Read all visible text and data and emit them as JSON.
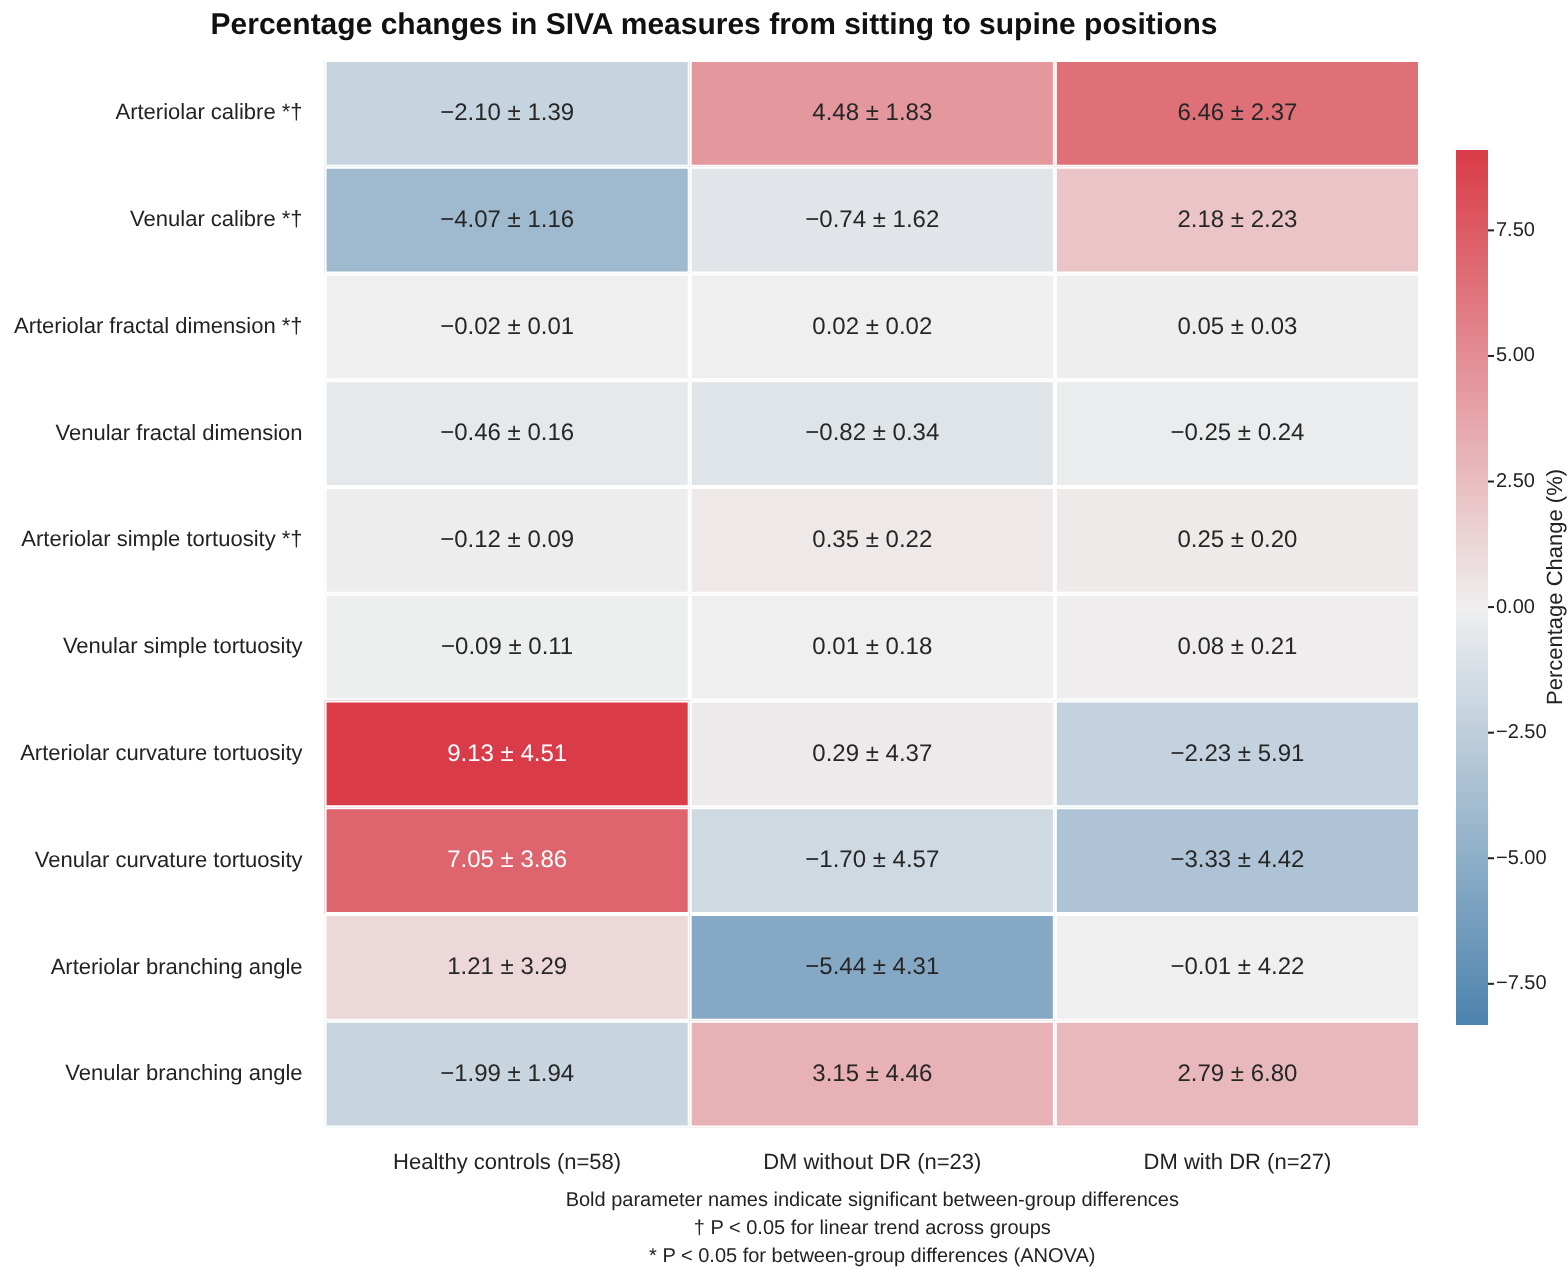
{
  "chart_data": {
    "type": "heatmap",
    "title": "Percentage changes in SIVA measures from sitting to supine positions",
    "categories": [
      "Healthy controls (n=58)",
      "DM without DR (n=23)",
      "DM with DR (n=27)"
    ],
    "y_categories": [
      "Arteriolar calibre *†",
      "Venular calibre *†",
      "Arteriolar fractal dimension *†",
      "Venular fractal dimension",
      "Arteriolar simple tortuosity *†",
      "Venular simple tortuosity",
      "Arteriolar curvature tortuosity",
      "Venular curvature tortuosity",
      "Arteriolar branching angle",
      "Venular branching angle"
    ],
    "cells": [
      [
        -2.1,
        4.48,
        6.46
      ],
      [
        -4.07,
        -0.74,
        2.18
      ],
      [
        -0.02,
        0.02,
        0.05
      ],
      [
        -0.46,
        -0.82,
        -0.25
      ],
      [
        -0.12,
        0.35,
        0.25
      ],
      [
        -0.09,
        0.01,
        0.08
      ],
      [
        9.13,
        0.29,
        -2.23
      ],
      [
        7.05,
        -1.7,
        -3.33
      ],
      [
        1.21,
        -5.44,
        -0.01
      ],
      [
        -1.99,
        3.15,
        2.79
      ]
    ],
    "cell_labels": [
      [
        "−2.10 ± 1.39",
        "4.48 ± 1.83",
        "6.46 ± 2.37"
      ],
      [
        "−4.07 ± 1.16",
        "−0.74 ± 1.62",
        "2.18 ± 2.23"
      ],
      [
        "−0.02 ± 0.01",
        "0.02 ± 0.02",
        "0.05 ± 0.03"
      ],
      [
        "−0.46 ± 0.16",
        "−0.82 ± 0.34",
        "−0.25 ± 0.24"
      ],
      [
        "−0.12 ± 0.09",
        "0.35 ± 0.22",
        "0.25 ± 0.20"
      ],
      [
        "−0.09 ± 0.11",
        "0.01 ± 0.18",
        "0.08 ± 0.21"
      ],
      [
        "9.13 ± 4.51",
        "0.29 ± 4.37",
        "−2.23 ± 5.91"
      ],
      [
        "7.05 ± 3.86",
        "−1.70 ± 4.57",
        "−3.33 ± 4.42"
      ],
      [
        "1.21 ± 3.29",
        "−5.44 ± 4.31",
        "−0.01 ± 4.22"
      ],
      [
        "−1.99 ± 1.94",
        "3.15 ± 4.46",
        "2.79 ± 6.80"
      ]
    ],
    "clabel": "Percentage Change (%)",
    "clim": [
      -8.3,
      9.1
    ],
    "cticks": [
      {
        "value": -7.5,
        "label": "−7.50"
      },
      {
        "value": -5,
        "label": "−5.00"
      },
      {
        "value": -2.5,
        "label": "−2.50"
      },
      {
        "value": 0,
        "label": "0.00"
      },
      {
        "value": 2.5,
        "label": "2.50"
      },
      {
        "value": 5,
        "label": "5.00"
      },
      {
        "value": 7.5,
        "label": "7.50"
      }
    ],
    "annotations": [
      "Bold parameter names indicate significant between-group differences",
      "† P < 0.05 for linear trend across groups",
      "* P < 0.05 for between-group differences (ANOVA)"
    ]
  }
}
